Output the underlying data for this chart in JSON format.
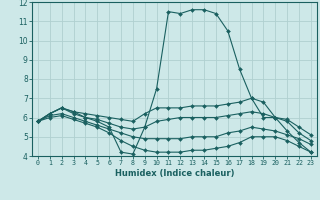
{
  "xlabel": "Humidex (Indice chaleur)",
  "bg_color": "#cde8e8",
  "grid_color": "#b0d0d0",
  "line_color": "#1a6060",
  "xlim": [
    -0.5,
    23.5
  ],
  "ylim": [
    4,
    12
  ],
  "xticks": [
    0,
    1,
    2,
    3,
    4,
    5,
    6,
    7,
    8,
    9,
    10,
    11,
    12,
    13,
    14,
    15,
    16,
    17,
    18,
    19,
    20,
    21,
    22,
    23
  ],
  "yticks": [
    4,
    5,
    6,
    7,
    8,
    9,
    10,
    11,
    12
  ],
  "lines": [
    {
      "x": [
        0,
        1,
        2,
        3,
        4,
        5,
        6,
        7,
        8,
        9,
        10,
        11,
        12,
        13,
        14,
        15,
        16,
        17,
        18,
        19,
        20,
        21,
        22,
        23
      ],
      "y": [
        5.8,
        6.2,
        6.5,
        6.3,
        6.0,
        5.8,
        5.5,
        4.2,
        4.1,
        5.5,
        7.5,
        11.5,
        11.4,
        11.6,
        11.6,
        11.4,
        10.5,
        8.5,
        7.0,
        6.0,
        6.0,
        5.3,
        4.7,
        4.2
      ]
    },
    {
      "x": [
        0,
        1,
        2,
        3,
        4,
        5,
        6,
        7,
        8,
        9,
        10,
        11,
        12,
        13,
        14,
        15,
        16,
        17,
        18,
        19,
        20,
        21,
        22,
        23
      ],
      "y": [
        5.8,
        6.2,
        6.5,
        6.3,
        6.2,
        6.1,
        6.0,
        5.9,
        5.8,
        6.2,
        6.5,
        6.5,
        6.5,
        6.6,
        6.6,
        6.6,
        6.7,
        6.8,
        7.0,
        6.8,
        6.0,
        5.9,
        5.5,
        5.1
      ]
    },
    {
      "x": [
        0,
        1,
        2,
        3,
        4,
        5,
        6,
        7,
        8,
        9,
        10,
        11,
        12,
        13,
        14,
        15,
        16,
        17,
        18,
        19,
        20,
        21,
        22,
        23
      ],
      "y": [
        5.8,
        6.2,
        6.5,
        6.2,
        6.0,
        5.9,
        5.7,
        5.5,
        5.4,
        5.5,
        5.8,
        5.9,
        6.0,
        6.0,
        6.0,
        6.0,
        6.1,
        6.2,
        6.3,
        6.2,
        6.0,
        5.8,
        5.2,
        4.8
      ]
    },
    {
      "x": [
        0,
        1,
        2,
        3,
        4,
        5,
        6,
        7,
        8,
        9,
        10,
        11,
        12,
        13,
        14,
        15,
        16,
        17,
        18,
        19,
        20,
        21,
        22,
        23
      ],
      "y": [
        5.8,
        6.1,
        6.2,
        6.0,
        5.8,
        5.6,
        5.4,
        5.2,
        5.0,
        4.9,
        4.9,
        4.9,
        4.9,
        5.0,
        5.0,
        5.0,
        5.2,
        5.3,
        5.5,
        5.4,
        5.3,
        5.1,
        4.9,
        4.6
      ]
    },
    {
      "x": [
        0,
        1,
        2,
        3,
        4,
        5,
        6,
        7,
        8,
        9,
        10,
        11,
        12,
        13,
        14,
        15,
        16,
        17,
        18,
        19,
        20,
        21,
        22,
        23
      ],
      "y": [
        5.8,
        6.0,
        6.1,
        5.9,
        5.7,
        5.5,
        5.2,
        4.8,
        4.5,
        4.3,
        4.2,
        4.2,
        4.2,
        4.3,
        4.3,
        4.4,
        4.5,
        4.7,
        5.0,
        5.0,
        5.0,
        4.8,
        4.5,
        4.2
      ]
    }
  ]
}
